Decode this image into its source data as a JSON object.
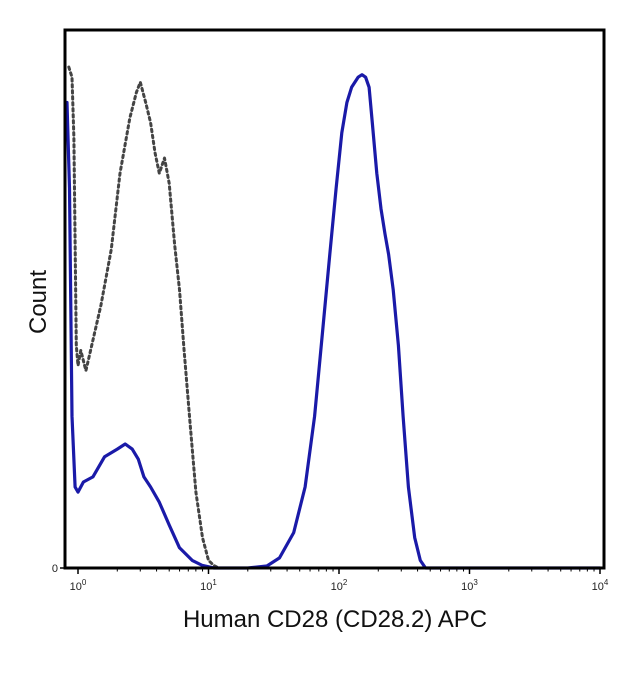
{
  "chart_data": {
    "type": "line",
    "title": "",
    "xlabel": "Human CD28 (CD28.2) APC",
    "ylabel": "Count",
    "x_scale": "log10",
    "xlim": [
      0.8,
      10000
    ],
    "ylim": [
      0,
      1
    ],
    "x_ticks": [
      {
        "value": 1,
        "base": "10",
        "exp": "0"
      },
      {
        "value": 10,
        "base": "10",
        "exp": "1"
      },
      {
        "value": 100,
        "base": "10",
        "exp": "2"
      },
      {
        "value": 1000,
        "base": "10",
        "exp": "3"
      },
      {
        "value": 10000,
        "base": "10",
        "exp": "4"
      }
    ],
    "y_ticks": [
      {
        "value": 0,
        "label": "0"
      }
    ],
    "grid": false,
    "legend": "none",
    "series": [
      {
        "style": "dotted",
        "color": "#444444",
        "points": [
          [
            0.85,
            0.99
          ],
          [
            0.9,
            0.97
          ],
          [
            0.93,
            0.85
          ],
          [
            0.97,
            0.44
          ],
          [
            1.0,
            0.4
          ],
          [
            1.05,
            0.43
          ],
          [
            1.15,
            0.39
          ],
          [
            1.3,
            0.45
          ],
          [
            1.5,
            0.52
          ],
          [
            1.8,
            0.63
          ],
          [
            2.1,
            0.78
          ],
          [
            2.5,
            0.89
          ],
          [
            2.8,
            0.94
          ],
          [
            3.0,
            0.96
          ],
          [
            3.3,
            0.92
          ],
          [
            3.6,
            0.88
          ],
          [
            3.9,
            0.82
          ],
          [
            4.2,
            0.78
          ],
          [
            4.6,
            0.81
          ],
          [
            5.0,
            0.76
          ],
          [
            5.5,
            0.64
          ],
          [
            6.0,
            0.55
          ],
          [
            6.5,
            0.43
          ],
          [
            7.2,
            0.29
          ],
          [
            8.0,
            0.15
          ],
          [
            9.0,
            0.06
          ],
          [
            10.0,
            0.015
          ],
          [
            11.0,
            0.005
          ],
          [
            12.0,
            0.0
          ]
        ]
      },
      {
        "style": "solid",
        "color": "#1a1aa8",
        "points": [
          [
            0.8,
            0.92
          ],
          [
            0.86,
            0.75
          ],
          [
            0.9,
            0.3
          ],
          [
            0.95,
            0.16
          ],
          [
            1.0,
            0.15
          ],
          [
            1.1,
            0.17
          ],
          [
            1.3,
            0.18
          ],
          [
            1.6,
            0.22
          ],
          [
            2.0,
            0.235
          ],
          [
            2.3,
            0.245
          ],
          [
            2.6,
            0.235
          ],
          [
            2.9,
            0.215
          ],
          [
            3.2,
            0.18
          ],
          [
            3.6,
            0.16
          ],
          [
            4.2,
            0.13
          ],
          [
            5.0,
            0.085
          ],
          [
            6.0,
            0.04
          ],
          [
            7.5,
            0.015
          ],
          [
            9.0,
            0.005
          ],
          [
            11.0,
            0.0
          ],
          [
            20.0,
            0.0
          ],
          [
            28.0,
            0.004
          ],
          [
            35.0,
            0.02
          ],
          [
            45.0,
            0.07
          ],
          [
            55.0,
            0.16
          ],
          [
            65.0,
            0.3
          ],
          [
            75.0,
            0.47
          ],
          [
            85.0,
            0.62
          ],
          [
            95.0,
            0.75
          ],
          [
            105.0,
            0.86
          ],
          [
            115.0,
            0.92
          ],
          [
            125.0,
            0.95
          ],
          [
            140.0,
            0.97
          ],
          [
            150.0,
            0.975
          ],
          [
            160.0,
            0.97
          ],
          [
            170.0,
            0.95
          ],
          [
            180.0,
            0.88
          ],
          [
            195.0,
            0.78
          ],
          [
            210.0,
            0.71
          ],
          [
            225.0,
            0.66
          ],
          [
            240.0,
            0.62
          ],
          [
            260.0,
            0.55
          ],
          [
            285.0,
            0.44
          ],
          [
            310.0,
            0.3
          ],
          [
            340.0,
            0.16
          ],
          [
            380.0,
            0.06
          ],
          [
            420.0,
            0.015
          ],
          [
            460.0,
            0.0
          ],
          [
            10000.0,
            0.0
          ]
        ]
      }
    ]
  }
}
